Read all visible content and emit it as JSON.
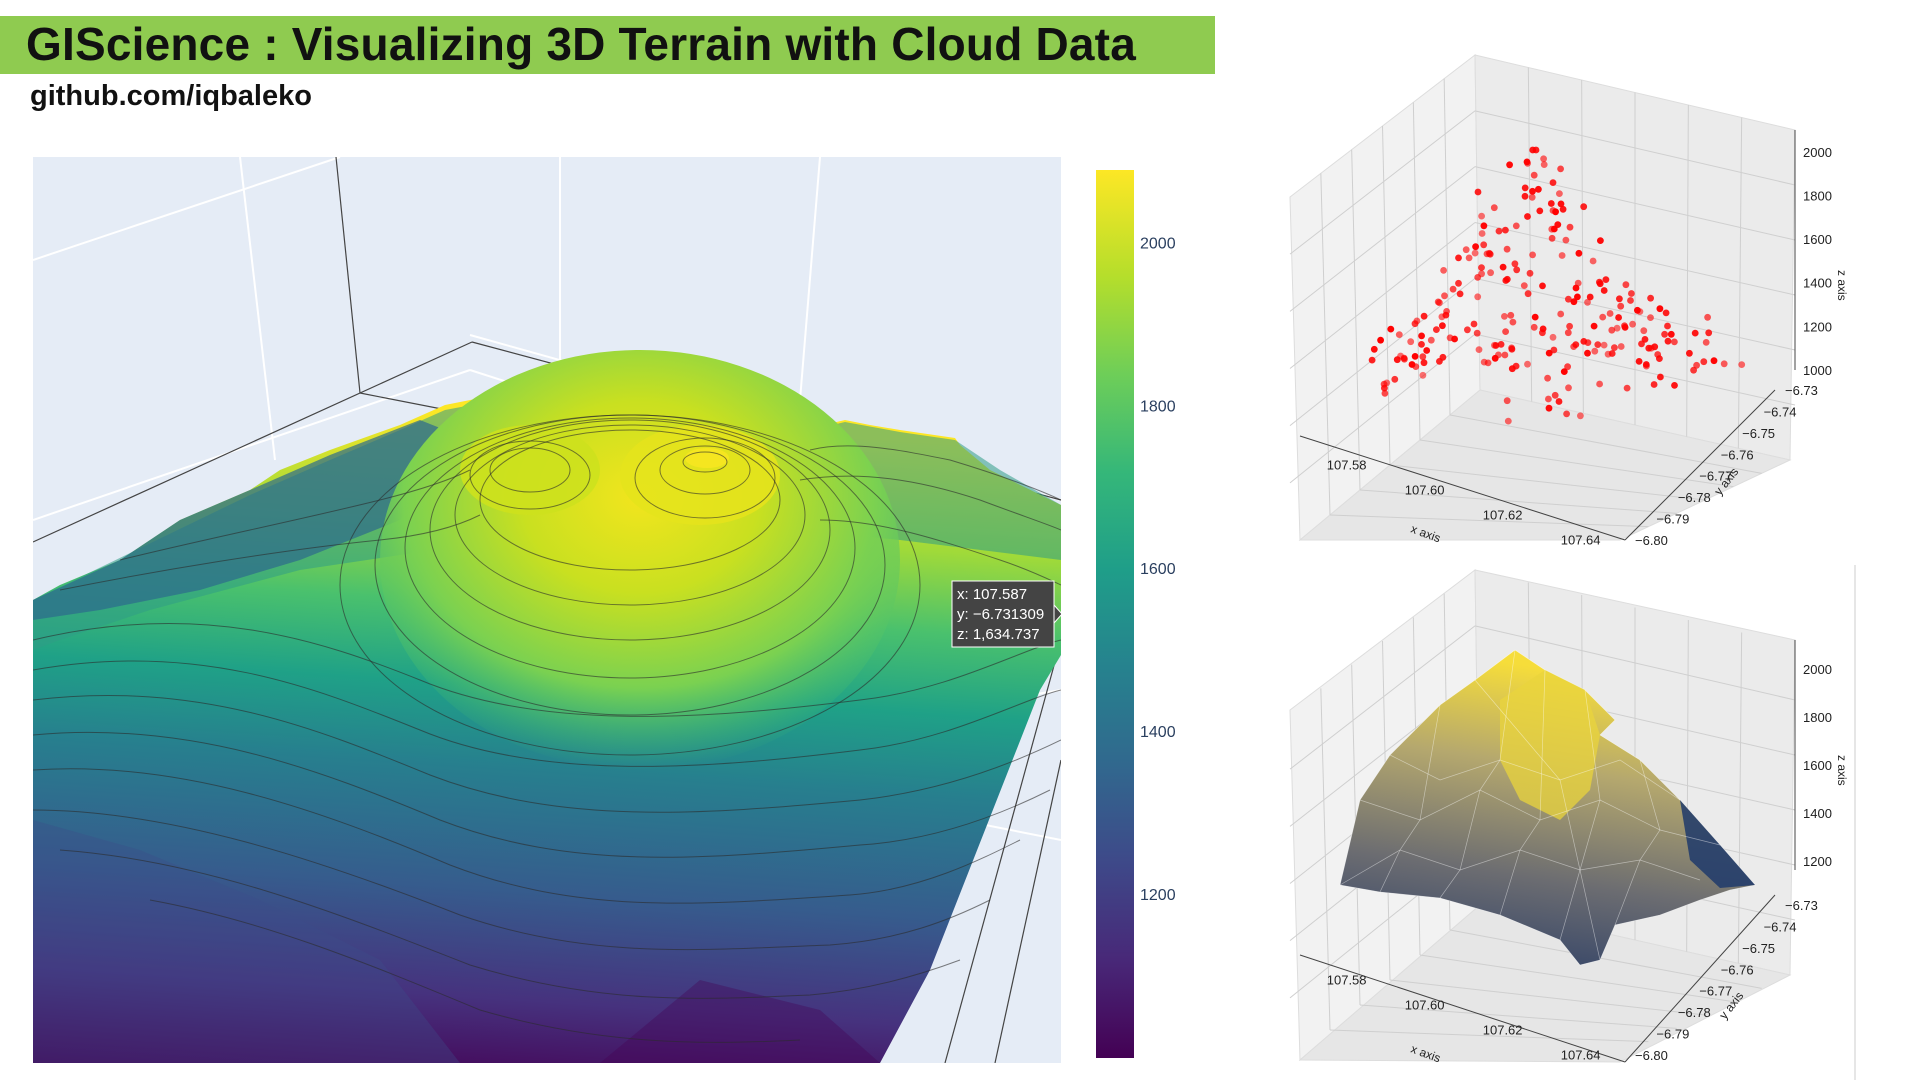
{
  "header": {
    "title": "GIScience : Visualizing 3D Terrain with Cloud Data",
    "subtitle": "github.com/iqbaleko"
  },
  "colors": {
    "title_band": "#8fcb50",
    "scene_bg": "#e5ecf6",
    "scatter_points": "#ff0000",
    "viridis": [
      "#440154",
      "#482878",
      "#3e4989",
      "#31688e",
      "#26828e",
      "#1f9e89",
      "#35b779",
      "#6ece58",
      "#b5de2b",
      "#fde725"
    ]
  },
  "chart_data": [
    {
      "type": "surface",
      "colormap": "viridis",
      "colorbar": {
        "range": [
          1000,
          2090
        ],
        "ticks": [
          "2000",
          "1800",
          "1600",
          "1400",
          "1200"
        ]
      },
      "contours": true,
      "hover": {
        "x": "x: 107.587",
        "y": "y: −6.731309",
        "z": "z: 1,634.737"
      }
    },
    {
      "type": "scatter",
      "marker_color": "#ff0000",
      "xlabel": "x axis",
      "ylabel": "y axis",
      "zlabel": "z axis",
      "x_ticks": [
        "107.58",
        "107.60",
        "107.62",
        "107.64"
      ],
      "y_ticks": [
        "−6.73",
        "−6.74",
        "−6.75",
        "−6.76",
        "−6.77",
        "−6.78",
        "−6.79",
        "−6.80"
      ],
      "z_ticks": [
        "2000",
        "1800",
        "1600",
        "1400",
        "1200",
        "1000"
      ],
      "xlim": [
        107.57,
        107.65
      ],
      "ylim": [
        -6.8,
        -6.73
      ],
      "zlim": [
        1000,
        2100
      ],
      "grid": true
    },
    {
      "type": "trisurf",
      "colormap": "cividis",
      "xlabel": "x axis",
      "ylabel": "y axis",
      "zlabel": "z axis",
      "x_ticks": [
        "107.58",
        "107.60",
        "107.62",
        "107.64"
      ],
      "y_ticks": [
        "−6.73",
        "−6.74",
        "−6.75",
        "−6.76",
        "−6.77",
        "−6.78",
        "−6.79",
        "−6.80"
      ],
      "z_ticks": [
        "2000",
        "1800",
        "1600",
        "1400",
        "1200"
      ],
      "xlim": [
        107.57,
        107.65
      ],
      "ylim": [
        -6.8,
        -6.73
      ],
      "zlim": [
        1100,
        2100
      ],
      "grid": true
    }
  ]
}
